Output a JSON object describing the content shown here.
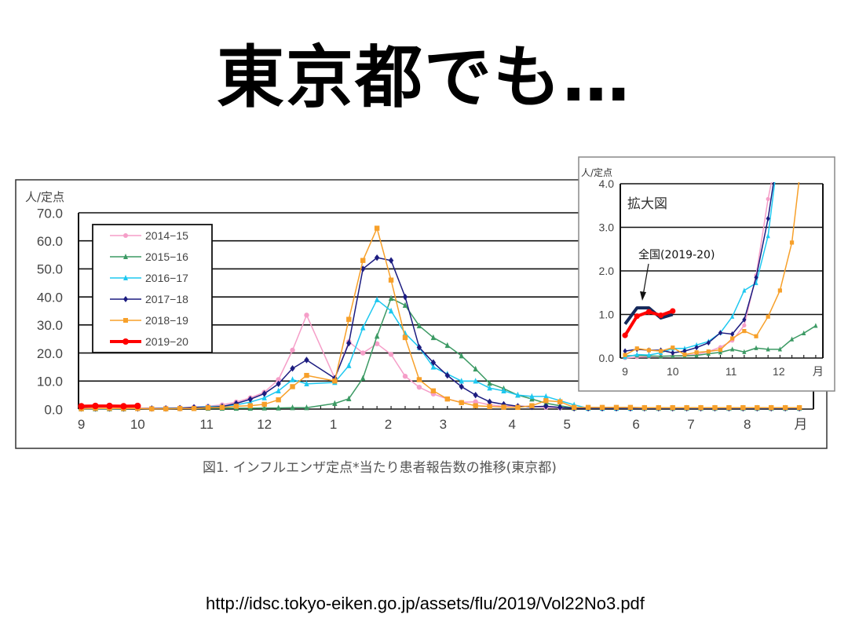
{
  "slide": {
    "title": "東京都でも…",
    "source_url": "http://idsc.tokyo-eiken.go.jp/assets/flu/2019/Vol22No3.pdf"
  },
  "chart_data": [
    {
      "type": "line",
      "title": "図1. インフルエンザ定点*当たり患者報告数の推移(東京都)",
      "ylabel": "人/定点",
      "xlabel": "月",
      "ylim": [
        0,
        70
      ],
      "yticks": [
        "0.0",
        "10.0",
        "20.0",
        "30.0",
        "40.0",
        "50.0",
        "60.0",
        "70.0"
      ],
      "x_unit": "week index from September",
      "month_ticks": [
        {
          "label": "9",
          "week": 0
        },
        {
          "label": "10",
          "week": 4
        },
        {
          "label": "11",
          "week": 8.9
        },
        {
          "label": "12",
          "week": 13
        },
        {
          "label": "1",
          "week": 17.9
        },
        {
          "label": "2",
          "week": 21.8
        },
        {
          "label": "3",
          "week": 25.7
        },
        {
          "label": "4",
          "week": 30.6
        },
        {
          "label": "5",
          "week": 34.5
        },
        {
          "label": "6",
          "week": 39.4
        },
        {
          "label": "7",
          "week": 43.3
        },
        {
          "label": "8",
          "week": 47.3
        },
        {
          "label": "月",
          "week": 51.1
        }
      ],
      "legend_position": "top-left",
      "grid": true,
      "series": [
        {
          "name": "2014−15",
          "color": "#f59ec8",
          "marker": "circle",
          "values": [
            0.1,
            0.1,
            0.2,
            0.2,
            0.3,
            0.3,
            0.4,
            0.5,
            0.7,
            1,
            1.5,
            2.5,
            4,
            6,
            10.5,
            21,
            33.5,
            null,
            11,
            24,
            20,
            23.3,
            19.5,
            11.7,
            7.8,
            5.4,
            3.6,
            2.4,
            2.6,
            1.5,
            1,
            1,
            1,
            0.6,
            0.5,
            0.5,
            0.4,
            0.4,
            0.4,
            0.3,
            0.3,
            0.3,
            0.3,
            0.3,
            0.3,
            0.3,
            0.3,
            0.3,
            0.3,
            0.3,
            0.3,
            0.3
          ]
        },
        {
          "name": "2015−16",
          "color": "#3c9a64",
          "marker": "triangle",
          "values": [
            0.1,
            0.1,
            0.1,
            0.1,
            0.2,
            0.2,
            0.2,
            0.2,
            0.2,
            0.3,
            0.3,
            0.3,
            0.3,
            0.4,
            0.4,
            0.5,
            0.5,
            null,
            2,
            3.7,
            11,
            26,
            39.5,
            37,
            29.7,
            25.5,
            22.7,
            19,
            14.3,
            9.2,
            7.3,
            5,
            3.6,
            2.1,
            1.2,
            0.4,
            0.3,
            0.3,
            0.3,
            0.3,
            0.3,
            0.3,
            0.3,
            0.3,
            0.3,
            0.3,
            0.3,
            0.3,
            0.3,
            0.3,
            0.3,
            0.3
          ]
        },
        {
          "name": "2016−17",
          "color": "#1ec8f0",
          "marker": "triangle",
          "values": [
            0.1,
            0.1,
            0.1,
            0.2,
            0.2,
            0.2,
            0.3,
            0.4,
            0.6,
            0.9,
            1,
            1.5,
            2.5,
            4,
            6.5,
            10.5,
            9,
            null,
            9.5,
            15.5,
            29,
            39,
            35,
            27,
            22,
            15,
            12.5,
            10,
            10,
            7.5,
            6.5,
            5,
            4.5,
            4.5,
            3,
            1.5,
            0.3,
            0.3,
            0.3,
            0.3,
            0.3,
            0.3,
            0.3,
            0.3,
            0.3,
            0.3,
            0.3,
            0.3,
            0.3,
            0.3,
            0.3,
            0.3
          ]
        },
        {
          "name": "2017−18",
          "color": "#1c1c80",
          "marker": "diamond",
          "values": [
            0.2,
            0.2,
            0.2,
            0.2,
            0.2,
            0.2,
            0.2,
            0.3,
            0.6,
            0.6,
            0.9,
            2,
            3.5,
            5.5,
            9,
            14.5,
            17.5,
            null,
            11,
            23.5,
            50,
            54,
            53,
            40,
            22,
            16.6,
            12,
            8,
            5,
            2.6,
            1.7,
            1,
            0.8,
            1,
            0.6,
            0.3,
            0.3,
            0.3,
            0.3,
            0.3,
            0.3,
            0.3,
            0.3,
            0.3,
            0.3,
            0.3,
            0.3,
            0.3,
            0.3,
            0.3,
            0.3,
            0.3
          ]
        },
        {
          "name": "2018−19",
          "color": "#f7a02a",
          "marker": "square",
          "values": [
            0.1,
            0.2,
            0.2,
            0.2,
            0.2,
            0.1,
            0.1,
            0.2,
            0.2,
            0.5,
            0.6,
            1,
            1.2,
            1.7,
            3.3,
            8,
            12,
            null,
            10,
            32,
            53,
            64.5,
            46,
            25.5,
            10.5,
            6.5,
            3.6,
            2.3,
            1.2,
            0.9,
            0.7,
            0.6,
            1.2,
            3,
            2.6,
            0.6,
            0.6,
            0.6,
            0.6,
            0.6,
            0.5,
            0.5,
            0.5,
            0.5,
            0.5,
            0.5,
            0.5,
            0.5,
            0.5,
            0.5,
            0.5,
            0.5
          ]
        },
        {
          "name": "2019−20",
          "color": "#ff0000",
          "marker": "circle",
          "thick": true,
          "values": [
            1,
            1.1,
            1.1,
            1.0,
            1.1
          ]
        }
      ]
    },
    {
      "type": "line",
      "title": "拡大図",
      "ylabel": "人/定点",
      "xlabel": "月",
      "ylim": [
        0,
        4
      ],
      "yticks": [
        "0.0",
        "1.0",
        "2.0",
        "3.0",
        "4.0"
      ],
      "month_ticks": [
        {
          "label": "9",
          "week": 0
        },
        {
          "label": "10",
          "week": 4
        },
        {
          "label": "11",
          "week": 8.9
        },
        {
          "label": "12",
          "week": 12.9
        },
        {
          "label": "月",
          "week": 16.2
        }
      ],
      "annotation": "全国(2019-20)",
      "series": [
        {
          "name": "2014−15",
          "color": "#f59ec8",
          "marker": "circle",
          "values": [
            0,
            0.02,
            0.03,
            0.04,
            0.05,
            0.06,
            0.08,
            0.15,
            0.25,
            0.4,
            0.75,
            1.9,
            3.65,
            5
          ]
        },
        {
          "name": "2015−16",
          "color": "#3c9a64",
          "marker": "triangle",
          "values": [
            0.05,
            0.06,
            0.05,
            0.04,
            0.05,
            0.05,
            0.06,
            0.1,
            0.13,
            0.2,
            0.14,
            0.23,
            0.2,
            0.2,
            0.43,
            0.57,
            0.74
          ]
        },
        {
          "name": "2016−17",
          "color": "#1ec8f0",
          "marker": "triangle",
          "values": [
            0.02,
            0.08,
            0.07,
            0.12,
            0.22,
            0.22,
            0.3,
            0.38,
            0.58,
            0.95,
            1.55,
            1.72,
            2.8,
            5
          ]
        },
        {
          "name": "2017−18",
          "color": "#1c1c80",
          "marker": "diamond",
          "values": [
            0.16,
            0.2,
            0.18,
            0.18,
            0.12,
            0.16,
            0.24,
            0.35,
            0.58,
            0.55,
            0.88,
            1.85,
            3.2,
            5
          ]
        },
        {
          "name": "2018−19",
          "color": "#f7a02a",
          "marker": "square",
          "values": [
            0.07,
            0.22,
            0.18,
            0.16,
            0.24,
            0.08,
            0.13,
            0.15,
            0.19,
            0.45,
            0.62,
            0.5,
            0.95,
            1.55,
            2.65,
            5
          ]
        },
        {
          "name": "全国 2019−20",
          "color": "#14285a",
          "marker": "none",
          "thick": true,
          "values": [
            0.78,
            1.15,
            1.15,
            0.92,
            1.0
          ]
        },
        {
          "name": "2019−20",
          "color": "#ff0000",
          "marker": "circle",
          "thick": true,
          "values": [
            0.52,
            0.96,
            1.06,
            0.98,
            1.08
          ]
        }
      ]
    }
  ]
}
